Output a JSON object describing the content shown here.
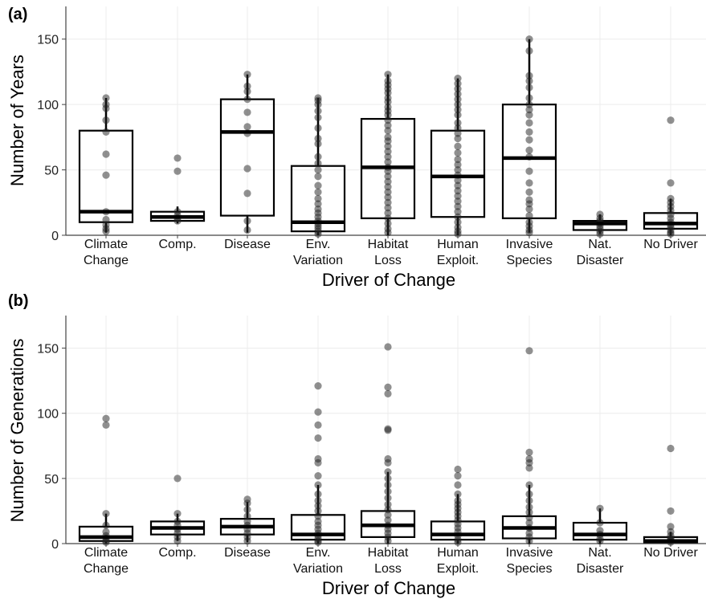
{
  "chart_data": [
    {
      "panel": "(a)",
      "type": "box",
      "xlabel": "Driver of Change",
      "ylabel": "Number of Years",
      "ylim": [
        0,
        175
      ],
      "yticks": [
        0,
        50,
        100,
        150
      ],
      "grid": true,
      "categories": [
        [
          "Climate",
          "Change"
        ],
        [
          "Comp."
        ],
        [
          "Disease"
        ],
        [
          "Env.",
          "Variation"
        ],
        [
          "Habitat",
          "Loss"
        ],
        [
          "Human",
          "Exploit."
        ],
        [
          "Invasive",
          "Species"
        ],
        [
          "Nat.",
          "Disaster"
        ],
        [
          "No Driver"
        ]
      ],
      "boxes": [
        {
          "q1": 10,
          "median": 18,
          "q3": 80,
          "lo": 2,
          "hi": 105
        },
        {
          "q1": 11,
          "median": 14,
          "q3": 18,
          "lo": 9,
          "hi": 22
        },
        {
          "q1": 15,
          "median": 79,
          "q3": 104,
          "lo": 2,
          "hi": 123
        },
        {
          "q1": 3,
          "median": 10,
          "q3": 53,
          "lo": 0,
          "hi": 105
        },
        {
          "q1": 13,
          "median": 52,
          "q3": 89,
          "lo": 0,
          "hi": 123
        },
        {
          "q1": 14,
          "median": 45,
          "q3": 80,
          "lo": 0,
          "hi": 120
        },
        {
          "q1": 13,
          "median": 59,
          "q3": 100,
          "lo": 2,
          "hi": 150
        },
        {
          "q1": 4,
          "median": 9,
          "q3": 11,
          "lo": 1,
          "hi": 16
        },
        {
          "q1": 5,
          "median": 9,
          "q3": 17,
          "lo": 0,
          "hi": 28
        }
      ],
      "points": [
        [
          105,
          100,
          97,
          88,
          79,
          62,
          46,
          18,
          12,
          8,
          5,
          3
        ],
        [
          59,
          49,
          18,
          15,
          13,
          11
        ],
        [
          123,
          114,
          110,
          104,
          94,
          83,
          78,
          51,
          32,
          11,
          4
        ],
        [
          105,
          103,
          100,
          95,
          90,
          82,
          74,
          70,
          60,
          55,
          50,
          45,
          38,
          33,
          28,
          24,
          20,
          17,
          14,
          11,
          9,
          7,
          5,
          3,
          1
        ],
        [
          123,
          118,
          115,
          112,
          109,
          105,
          102,
          98,
          95,
          92,
          88,
          84,
          80,
          75,
          72,
          68,
          64,
          60,
          56,
          52,
          49,
          45,
          41,
          37,
          33,
          29,
          25,
          21,
          17,
          13,
          9,
          5,
          2
        ],
        [
          120,
          116,
          112,
          108,
          104,
          100,
          96,
          92,
          86,
          82,
          78,
          74,
          68,
          63,
          58,
          54,
          50,
          46,
          42,
          38,
          34,
          30,
          26,
          22,
          18,
          14,
          10,
          6,
          3,
          1
        ],
        [
          150,
          141,
          122,
          118,
          113,
          105,
          100,
          96,
          92,
          86,
          79,
          73,
          65,
          60,
          49,
          40,
          33,
          27,
          24,
          20,
          15,
          10,
          7,
          4,
          2
        ],
        [
          16,
          13,
          11,
          9,
          7,
          5,
          3,
          1
        ],
        [
          88,
          40,
          28,
          25,
          22,
          19,
          16,
          13,
          10,
          8,
          6,
          4,
          2,
          1
        ]
      ]
    },
    {
      "panel": "(b)",
      "type": "box",
      "xlabel": "Driver of Change",
      "ylabel": "Number of Generations",
      "ylim": [
        0,
        175
      ],
      "yticks": [
        0,
        50,
        100,
        150
      ],
      "grid": true,
      "categories": [
        [
          "Climate",
          "Change"
        ],
        [
          "Comp."
        ],
        [
          "Disease"
        ],
        [
          "Env.",
          "Variation"
        ],
        [
          "Habitat",
          "Loss"
        ],
        [
          "Human",
          "Exploit."
        ],
        [
          "Invasive",
          "Species"
        ],
        [
          "Nat.",
          "Disaster"
        ],
        [
          "No Driver"
        ]
      ],
      "boxes": [
        {
          "q1": 2,
          "median": 5,
          "q3": 13,
          "lo": 0,
          "hi": 23
        },
        {
          "q1": 7,
          "median": 12,
          "q3": 17,
          "lo": 2,
          "hi": 23
        },
        {
          "q1": 7,
          "median": 13,
          "q3": 19,
          "lo": 1,
          "hi": 32
        },
        {
          "q1": 3,
          "median": 7,
          "q3": 22,
          "lo": 0,
          "hi": 45
        },
        {
          "q1": 5,
          "median": 14,
          "q3": 25,
          "lo": 0,
          "hi": 55
        },
        {
          "q1": 3,
          "median": 7,
          "q3": 17,
          "lo": 0,
          "hi": 38
        },
        {
          "q1": 4,
          "median": 12,
          "q3": 21,
          "lo": 0,
          "hi": 45
        },
        {
          "q1": 3,
          "median": 7,
          "q3": 16,
          "lo": 0,
          "hi": 27
        },
        {
          "q1": 1,
          "median": 2,
          "q3": 5,
          "lo": 0,
          "hi": 9
        }
      ],
      "points": [
        [
          96,
          91,
          23,
          14,
          9,
          6,
          4,
          2,
          1
        ],
        [
          50,
          23,
          17,
          14,
          11,
          8,
          5,
          2
        ],
        [
          34,
          31,
          26,
          21,
          17,
          14,
          11,
          8,
          5,
          2
        ],
        [
          121,
          101,
          91,
          81,
          65,
          62,
          52,
          45,
          38,
          33,
          29,
          25,
          21,
          17,
          14,
          11,
          8,
          6,
          4,
          2,
          1
        ],
        [
          151,
          120,
          115,
          88,
          87,
          65,
          62,
          55,
          50,
          45,
          40,
          35,
          30,
          26,
          22,
          18,
          14,
          11,
          8,
          5,
          2
        ],
        [
          57,
          52,
          45,
          38,
          33,
          30,
          27,
          24,
          21,
          18,
          15,
          12,
          9,
          6,
          3,
          1
        ],
        [
          148,
          70,
          65,
          62,
          58,
          45,
          38,
          33,
          28,
          24,
          20,
          16,
          12,
          8,
          5,
          2
        ],
        [
          27,
          16,
          10,
          7,
          4,
          2
        ],
        [
          73,
          25,
          13,
          9,
          6,
          4,
          3,
          2,
          1
        ]
      ]
    }
  ]
}
